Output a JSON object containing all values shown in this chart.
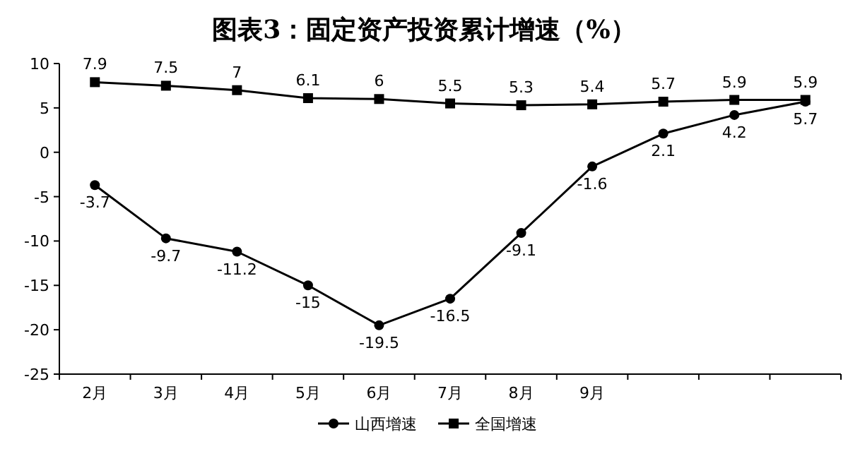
{
  "chart_data": {
    "type": "line",
    "title": "图表3：固定资产投资累计增速（%）",
    "categories": [
      "2月",
      "3月",
      "4月",
      "5月",
      "6月",
      "7月",
      "8月",
      "9月",
      null,
      null,
      null
    ],
    "series": [
      {
        "name": "山西增速",
        "color": "#000000",
        "marker": "circle",
        "values": [
          -3.7,
          -9.7,
          -11.2,
          -15,
          -19.5,
          -16.5,
          -9.1,
          -1.6,
          2.1,
          4.2,
          5.7
        ]
      },
      {
        "name": "全国增速",
        "color": "#000000",
        "marker": "square",
        "values": [
          7.9,
          7.5,
          7,
          6.1,
          6,
          5.5,
          5.3,
          5.4,
          5.7,
          5.9,
          5.9
        ]
      }
    ],
    "ylim": [
      -25,
      10
    ],
    "yticks": [
      -25,
      -20,
      -15,
      -10,
      -5,
      0,
      5,
      10
    ],
    "data_labels": true,
    "legend": "bottom",
    "grid": false
  }
}
